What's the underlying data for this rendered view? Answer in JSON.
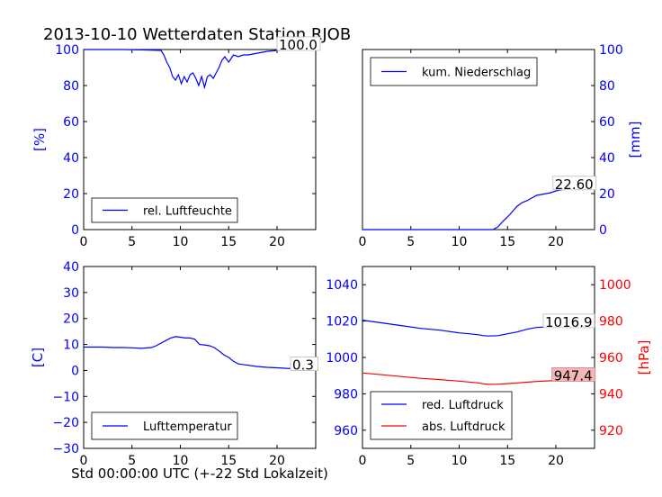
{
  "figure": {
    "title": "2013-10-10 Wetterdaten Station RJOB",
    "xlabel": "Std 00:00:00 UTC (+-22 Std Lokalzeit)"
  },
  "colors": {
    "blue": "#0000ff",
    "red": "#ff0000",
    "text": "#000000",
    "redBox": "#f4b6b6"
  },
  "chart_data": [
    {
      "type": "line",
      "id": "humidity",
      "ylabel": "[%]",
      "xlim": [
        0,
        24
      ],
      "ylim": [
        0,
        100
      ],
      "xticks": [
        0,
        5,
        10,
        15,
        20
      ],
      "yticks": [
        0,
        20,
        40,
        60,
        80,
        100
      ],
      "legend": "bottom-left",
      "series": [
        {
          "name": "rel. Luftfeuchte",
          "color": "blue",
          "x": [
            0,
            2,
            4,
            6,
            8,
            8.3,
            8.6,
            8.9,
            9.2,
            9.5,
            9.8,
            10.1,
            10.4,
            10.7,
            11,
            11.3,
            11.6,
            11.9,
            12.2,
            12.5,
            12.8,
            13.1,
            13.4,
            13.7,
            14,
            14.3,
            14.6,
            15,
            15.5,
            16,
            16.5,
            17,
            18,
            19,
            20,
            21,
            22,
            23,
            24
          ],
          "y": [
            100,
            100,
            100,
            99.8,
            99.5,
            97,
            93,
            90,
            85,
            83,
            86,
            81,
            85,
            82,
            86,
            87,
            84,
            80,
            85,
            79,
            85,
            86,
            84,
            87,
            90,
            94,
            96,
            93,
            97,
            96,
            97,
            97,
            98,
            99,
            99.5,
            100,
            100,
            100,
            100
          ]
        }
      ],
      "annotation": {
        "text": "100.0",
        "x": 20,
        "y": 100
      }
    },
    {
      "type": "line",
      "id": "precip",
      "ylabel": "[mm]",
      "xlim": [
        0,
        24
      ],
      "ylim": [
        0,
        100
      ],
      "xticks": [
        0,
        5,
        10,
        15,
        20
      ],
      "yticks": [
        0,
        20,
        40,
        60,
        80,
        100
      ],
      "yaxis_side": "right",
      "legend": "top-left",
      "series": [
        {
          "name": "kum. Niederschlag",
          "color": "blue",
          "x": [
            0,
            13.5,
            14,
            14.5,
            15,
            15.5,
            16,
            16.5,
            17,
            17.5,
            18,
            18.5,
            19,
            19.5,
            20,
            20.5,
            21,
            22,
            23,
            24
          ],
          "y": [
            0,
            0,
            1.5,
            4.5,
            7,
            10,
            13,
            15,
            16,
            17.5,
            19,
            19.5,
            20,
            20.5,
            21.5,
            22,
            22.6,
            22.6,
            22.6,
            22.6
          ]
        }
      ],
      "annotation": {
        "text": "22.60",
        "x": 19.7,
        "y": 22.6
      }
    },
    {
      "type": "line",
      "id": "temperature",
      "ylabel": "[C]",
      "xlim": [
        0,
        24
      ],
      "ylim": [
        -30,
        40
      ],
      "xticks": [
        0,
        5,
        10,
        15,
        20
      ],
      "yticks": [
        -30,
        -20,
        -10,
        0,
        10,
        20,
        30,
        40
      ],
      "legend": "bottom-left",
      "series": [
        {
          "name": "Lufttemperatur",
          "color": "blue",
          "x": [
            0,
            1,
            2,
            3,
            4,
            5,
            6,
            7,
            7.5,
            8,
            8.5,
            9,
            9.5,
            10,
            10.5,
            11,
            11.5,
            12,
            12.5,
            13,
            13.5,
            14,
            14.5,
            15,
            15.5,
            16,
            17,
            18,
            19,
            20,
            21,
            22,
            23,
            24
          ],
          "y": [
            9,
            9,
            9,
            8.8,
            8.8,
            8.7,
            8.5,
            8.8,
            9.5,
            10.5,
            11.5,
            12.5,
            13,
            12.8,
            12.5,
            12.5,
            12,
            10,
            9.8,
            9.5,
            8.8,
            7.5,
            6,
            5,
            3.5,
            2.5,
            2,
            1.5,
            1.2,
            1,
            0.8,
            0.6,
            0.4,
            0.3
          ]
        }
      ],
      "annotation": {
        "text": "0.3",
        "x": 21.4,
        "y": 0.3
      }
    },
    {
      "type": "line",
      "id": "pressure",
      "xlim": [
        0,
        24
      ],
      "ylim": [
        950,
        1050
      ],
      "y2lim": [
        910,
        1010
      ],
      "xticks": [
        0,
        5,
        10,
        15,
        20
      ],
      "yticks": [
        960,
        980,
        1000,
        1020,
        1040
      ],
      "y2ticks": [
        920,
        940,
        960,
        980,
        1000
      ],
      "y2label": "[hPa]",
      "legend": "bottom-left",
      "series": [
        {
          "name": "red. Luftdruck",
          "color": "blue",
          "axis": "left",
          "x": [
            0,
            2,
            4,
            6,
            8,
            10,
            11,
            12,
            12.5,
            13,
            14,
            15,
            16,
            17,
            18,
            19,
            20,
            21,
            22,
            23,
            24
          ],
          "y": [
            1020.5,
            1019,
            1017.5,
            1016,
            1015,
            1013.5,
            1013,
            1012.5,
            1012,
            1011.8,
            1012,
            1013,
            1014,
            1015.5,
            1016.5,
            1016.8,
            1016.9,
            1016.9,
            1016.9,
            1016.9,
            1016.9
          ]
        },
        {
          "name": "abs. Luftdruck",
          "color": "red",
          "axis": "right",
          "x": [
            0,
            2,
            4,
            6,
            8,
            10,
            11,
            12,
            12.5,
            13,
            14,
            15,
            16,
            17,
            18,
            19,
            20,
            21,
            22,
            23,
            24
          ],
          "y": [
            951.5,
            950.5,
            949.5,
            948.5,
            947.8,
            947,
            946.5,
            946,
            945.5,
            945.2,
            945.3,
            945.6,
            946,
            946.4,
            946.8,
            947.1,
            947.3,
            947.4,
            947.4,
            947.4,
            947.4
          ]
        }
      ],
      "annotations": [
        {
          "text": "1016.9",
          "x": 18.7,
          "y": 1016.9,
          "axis": "left",
          "box": "plain"
        },
        {
          "text": "947.4",
          "x": 19.6,
          "y": 947.4,
          "axis": "right",
          "box": "red"
        }
      ]
    }
  ]
}
